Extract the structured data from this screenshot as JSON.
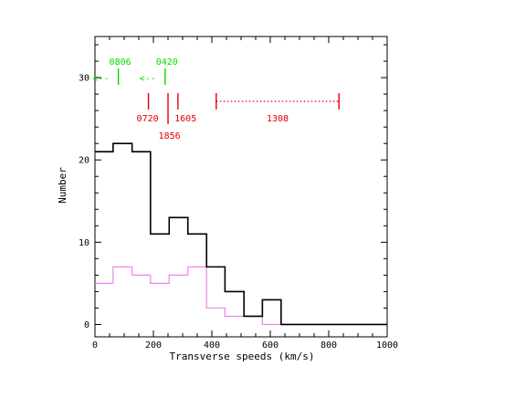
{
  "chart_data": {
    "type": "histogram",
    "xlabel": "Transverse speeds (km/s)",
    "ylabel": "Number",
    "xlim": [
      0,
      1000
    ],
    "ylim": [
      -1.5,
      35
    ],
    "x_ticks": [
      0,
      200,
      400,
      600,
      800,
      1000
    ],
    "y_ticks": [
      0,
      10,
      20,
      30
    ],
    "bin_edges": [
      0,
      62,
      127,
      190,
      254,
      318,
      382,
      445,
      510,
      573,
      637,
      733,
      1000
    ],
    "series": [
      {
        "color": "#000000",
        "values": [
          21,
          22,
          21,
          11,
          13,
          11,
          7,
          4,
          1,
          3,
          0,
          0
        ]
      },
      {
        "color": "#ee82ee",
        "values": [
          5,
          7,
          6,
          5,
          6,
          7,
          2,
          1,
          1,
          0,
          0,
          0
        ]
      }
    ],
    "markers_red": [
      {
        "label": "0720",
        "x": 183,
        "label_x": 180,
        "tall": false,
        "label_row": "upper"
      },
      {
        "label": "1856",
        "x": 250,
        "label_x": 255,
        "tall": true,
        "label_row": "lower"
      },
      {
        "label": "1605",
        "x": 284,
        "label_x": 310,
        "tall": false,
        "label_row": "upper"
      }
    ],
    "range_marker_red": {
      "label": "1308",
      "x_start": 415,
      "x_end": 835
    },
    "markers_green": [
      {
        "label": "0806",
        "x": 80,
        "arrow_label": "<--"
      },
      {
        "label": "0420",
        "x": 240,
        "arrow_label": "<--"
      }
    ],
    "colors": {
      "axis": "#000000",
      "red": "#e00000",
      "green": "#00dd00",
      "violet": "#ee82ee"
    }
  }
}
